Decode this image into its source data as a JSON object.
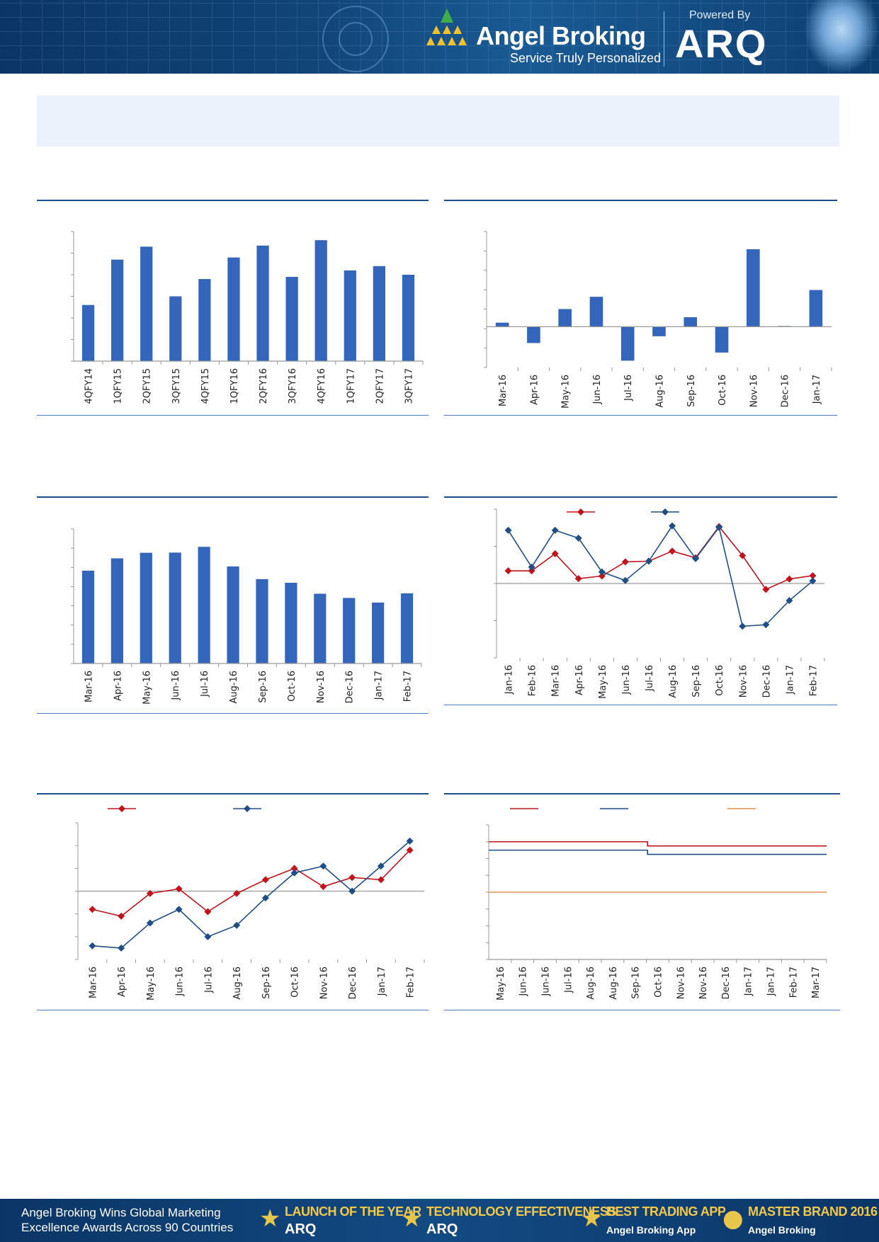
{
  "header": {
    "brand": "Angel Broking",
    "tagline": "Service Truly Personalized",
    "powered_by": "Powered By",
    "product": "ARQ"
  },
  "colors": {
    "bar": "#3366bb",
    "series_red": "#c0141c",
    "series_blue": "#1f4e87",
    "series_orange": "#e0934a",
    "header_bg": "#0f4277"
  },
  "chart_data": [
    {
      "id": "chart1",
      "type": "bar",
      "categories": [
        "4QFY14",
        "1QFY15",
        "2QFY15",
        "3QFY15",
        "4QFY15",
        "1QFY16",
        "2QFY16",
        "3QFY16",
        "4QFY16",
        "1QFY17",
        "2QFY17",
        "3QFY17"
      ],
      "values": [
        2.6,
        4.7,
        5.3,
        3.0,
        3.8,
        4.8,
        5.35,
        3.9,
        5.6,
        4.2,
        4.4,
        4.0
      ],
      "ylim": [
        0,
        6
      ]
    },
    {
      "id": "chart2",
      "type": "bar",
      "categories": [
        "Mar-16",
        "Apr-16",
        "May-16",
        "Jun-16",
        "Jul-16",
        "Aug-16",
        "Sep-16",
        "Oct-16",
        "Nov-16",
        "Dec-16",
        "Jan-17"
      ],
      "values": [
        0.3,
        -1.2,
        1.3,
        2.2,
        -2.5,
        -0.7,
        0.7,
        -1.9,
        5.7,
        0.05,
        2.7
      ],
      "ylim": [
        -3,
        7
      ]
    },
    {
      "id": "chart3",
      "type": "bar",
      "categories": [
        "Mar-16",
        "Apr-16",
        "May-16",
        "Jun-16",
        "Jul-16",
        "Aug-16",
        "Sep-16",
        "Oct-16",
        "Nov-16",
        "Dec-16",
        "Jan-17",
        "Feb-17"
      ],
      "values": [
        4.83,
        5.47,
        5.76,
        5.77,
        6.07,
        5.05,
        4.39,
        4.2,
        3.63,
        3.41,
        3.17,
        3.65
      ],
      "ylim": [
        0,
        7
      ]
    },
    {
      "id": "chart4",
      "type": "line",
      "categories": [
        "Jan-16",
        "Feb-16",
        "Mar-16",
        "Apr-16",
        "May-16",
        "Jun-16",
        "Jul-16",
        "Aug-16",
        "Sep-16",
        "Oct-16",
        "Nov-16",
        "Dec-16",
        "Jan-17",
        "Feb-17"
      ],
      "series": [
        {
          "values": [
            3.4,
            3.4,
            8.0,
            1.3,
            2.0,
            5.8,
            6.0,
            8.7,
            6.9,
            15.3,
            7.5,
            -1.6,
            1.2,
            2.1
          ]
        },
        {
          "values": [
            14.3,
            4.4,
            14.3,
            12.2,
            3.1,
            0.8,
            6.0,
            15.5,
            6.7,
            15.1,
            -11.5,
            -11.1,
            -4.6,
            0.7
          ]
        }
      ],
      "ylim": [
        -20,
        20
      ]
    },
    {
      "id": "chart5",
      "type": "line",
      "categories": [
        "Mar-16",
        "Apr-16",
        "May-16",
        "Jun-16",
        "Jul-16",
        "Aug-16",
        "Sep-16",
        "Oct-16",
        "Nov-16",
        "Dec-16",
        "Jan-17",
        "Feb-17"
      ],
      "series": [
        {
          "values": [
            -0.8,
            -1.1,
            -0.1,
            0.1,
            -0.9,
            -0.1,
            0.5,
            1.0,
            0.2,
            0.6,
            0.5,
            1.8
          ]
        },
        {
          "values": [
            -2.4,
            -2.5,
            -1.4,
            -0.8,
            -2.0,
            -1.5,
            -0.3,
            0.8,
            1.1,
            0.0,
            1.1,
            2.2
          ]
        }
      ],
      "ylim": [
        -3,
        3
      ]
    },
    {
      "id": "chart6",
      "type": "line",
      "categories": [
        "May-16",
        "Jun-16",
        "Jun-16",
        "Jul-16",
        "Aug-16",
        "Aug-16",
        "Sep-16",
        "Oct-16",
        "Nov-16",
        "Nov-16",
        "Dec-16",
        "Jan-17",
        "Jan-17",
        "Feb-17",
        "Mar-17"
      ],
      "series": [
        {
          "values": [
            7.0,
            7.0,
            7.0,
            7.0,
            7.0,
            7.0,
            7.0,
            6.75,
            6.75,
            6.75,
            6.75,
            6.75,
            6.75,
            6.75,
            6.75
          ],
          "step_at": 6.55
        },
        {
          "values": [
            6.5,
            6.5,
            6.5,
            6.5,
            6.5,
            6.5,
            6.5,
            6.25,
            6.25,
            6.25,
            6.25,
            6.25,
            6.25,
            6.25,
            6.25
          ],
          "step_at": 6.55
        },
        {
          "values": [
            4.0,
            4.0,
            4.0,
            4.0,
            4.0,
            4.0,
            4.0,
            4.0,
            4.0,
            4.0,
            4.0,
            4.0,
            4.0,
            4.0,
            4.0
          ]
        }
      ],
      "ylim": [
        0,
        8
      ]
    }
  ],
  "footer": {
    "headline": "Angel Broking Wins Global Marketing Excellence Awards Across 90 Countries",
    "awards": [
      {
        "title": "LAUNCH OF THE YEAR",
        "sub": "ARQ"
      },
      {
        "title": "TECHNOLOGY EFFECTIVENESS",
        "sub": "ARQ"
      },
      {
        "title": "BEST TRADING APP",
        "sub": "Angel Broking App"
      },
      {
        "title": "MASTER BRAND 2016",
        "sub": "Angel Broking"
      }
    ]
  }
}
